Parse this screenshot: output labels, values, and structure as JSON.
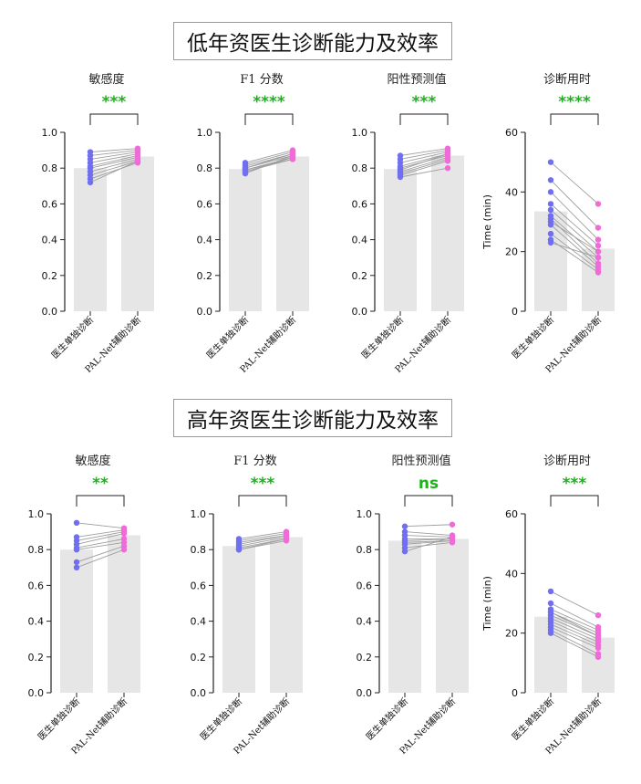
{
  "sections": [
    {
      "title": "低年资医生诊断能力及效率"
    },
    {
      "title": "高年资医生诊断能力及效率"
    }
  ],
  "colors": {
    "bar": "#e6e6e6",
    "before": "#6f6ff0",
    "after": "#f06ad8",
    "sig": "#18b418",
    "line": "#9e9e9e"
  },
  "chart_data": [
    {
      "type": "bar",
      "title": "敏感度",
      "significance": "***",
      "categories": [
        "医生单独诊断",
        "PAL-Net辅助诊断"
      ],
      "ylim": [
        0,
        1
      ],
      "yticks": [
        "0.0",
        "0.2",
        "0.4",
        "0.6",
        "0.8",
        "1.0"
      ],
      "ylabel": "",
      "means": [
        0.8,
        0.865
      ],
      "pairs": [
        [
          0.89,
          0.91
        ],
        [
          0.87,
          0.9
        ],
        [
          0.85,
          0.89
        ],
        [
          0.83,
          0.88
        ],
        [
          0.81,
          0.87
        ],
        [
          0.8,
          0.86
        ],
        [
          0.78,
          0.85
        ],
        [
          0.76,
          0.84
        ],
        [
          0.74,
          0.83
        ],
        [
          0.72,
          0.84
        ]
      ]
    },
    {
      "type": "bar",
      "title": "F1 分数",
      "significance": "****",
      "categories": [
        "医生单独诊断",
        "PAL-Net辅助诊断"
      ],
      "ylim": [
        0,
        1
      ],
      "yticks": [
        "0.0",
        "0.2",
        "0.4",
        "0.6",
        "0.8",
        "1.0"
      ],
      "ylabel": "",
      "means": [
        0.795,
        0.865
      ],
      "pairs": [
        [
          0.83,
          0.9
        ],
        [
          0.82,
          0.89
        ],
        [
          0.81,
          0.88
        ],
        [
          0.8,
          0.87
        ],
        [
          0.79,
          0.86
        ],
        [
          0.79,
          0.85
        ],
        [
          0.78,
          0.86
        ],
        [
          0.78,
          0.85
        ],
        [
          0.77,
          0.87
        ],
        [
          0.8,
          0.88
        ]
      ]
    },
    {
      "type": "bar",
      "title": "阳性预测值",
      "significance": "***",
      "categories": [
        "医生单独诊断",
        "PAL-Net辅助诊断"
      ],
      "ylim": [
        0,
        1
      ],
      "yticks": [
        "0.0",
        "0.2",
        "0.4",
        "0.6",
        "0.8",
        "1.0"
      ],
      "ylabel": "",
      "means": [
        0.795,
        0.87
      ],
      "pairs": [
        [
          0.87,
          0.91
        ],
        [
          0.85,
          0.9
        ],
        [
          0.83,
          0.89
        ],
        [
          0.81,
          0.88
        ],
        [
          0.8,
          0.87
        ],
        [
          0.78,
          0.86
        ],
        [
          0.77,
          0.85
        ],
        [
          0.76,
          0.84
        ],
        [
          0.75,
          0.8
        ],
        [
          0.79,
          0.88
        ]
      ]
    },
    {
      "type": "bar",
      "title": "诊断用时",
      "significance": "****",
      "categories": [
        "医生单独诊断",
        "PAL-Net辅助诊断"
      ],
      "ylim": [
        0,
        60
      ],
      "yticks": [
        "0",
        "20",
        "40",
        "60"
      ],
      "ylabel": "Time (min)",
      "means": [
        33.5,
        21
      ],
      "pairs": [
        [
          50,
          36
        ],
        [
          44,
          28
        ],
        [
          40,
          24
        ],
        [
          36,
          22
        ],
        [
          34,
          20
        ],
        [
          32,
          18
        ],
        [
          31,
          16
        ],
        [
          29,
          15
        ],
        [
          26,
          14
        ],
        [
          24,
          13
        ],
        [
          23,
          18
        ],
        [
          30,
          20
        ]
      ]
    },
    {
      "type": "bar",
      "title": "敏感度",
      "significance": "**",
      "categories": [
        "医生单独诊断",
        "PAL-Net辅助诊断"
      ],
      "ylim": [
        0,
        1
      ],
      "yticks": [
        "0.0",
        "0.2",
        "0.4",
        "0.6",
        "0.8",
        "1.0"
      ],
      "ylabel": "",
      "means": [
        0.8,
        0.88
      ],
      "pairs": [
        [
          0.95,
          0.92
        ],
        [
          0.87,
          0.91
        ],
        [
          0.85,
          0.9
        ],
        [
          0.83,
          0.89
        ],
        [
          0.81,
          0.86
        ],
        [
          0.8,
          0.84
        ],
        [
          0.73,
          0.82
        ],
        [
          0.7,
          0.8
        ]
      ]
    },
    {
      "type": "bar",
      "title": "F1 分数",
      "significance": "***",
      "categories": [
        "医生单独诊断",
        "PAL-Net辅助诊断"
      ],
      "ylim": [
        0,
        1
      ],
      "yticks": [
        "0.0",
        "0.2",
        "0.4",
        "0.6",
        "0.8",
        "1.0"
      ],
      "ylabel": "",
      "means": [
        0.82,
        0.87
      ],
      "pairs": [
        [
          0.86,
          0.9
        ],
        [
          0.85,
          0.89
        ],
        [
          0.84,
          0.88
        ],
        [
          0.83,
          0.88
        ],
        [
          0.82,
          0.87
        ],
        [
          0.81,
          0.86
        ],
        [
          0.8,
          0.85
        ],
        [
          0.8,
          0.86
        ]
      ]
    },
    {
      "type": "bar",
      "title": "阳性预测值",
      "significance": "ns",
      "categories": [
        "医生单独诊断",
        "PAL-Net辅助诊断"
      ],
      "ylim": [
        0,
        1
      ],
      "yticks": [
        "0.0",
        "0.2",
        "0.4",
        "0.6",
        "0.8",
        "1.0"
      ],
      "ylabel": "",
      "means": [
        0.85,
        0.86
      ],
      "pairs": [
        [
          0.93,
          0.94
        ],
        [
          0.9,
          0.88
        ],
        [
          0.88,
          0.87
        ],
        [
          0.86,
          0.86
        ],
        [
          0.85,
          0.86
        ],
        [
          0.84,
          0.85
        ],
        [
          0.83,
          0.85
        ],
        [
          0.81,
          0.84
        ],
        [
          0.79,
          0.87
        ]
      ]
    },
    {
      "type": "bar",
      "title": "诊断用时",
      "significance": "***",
      "categories": [
        "医生单独诊断",
        "PAL-Net辅助诊断"
      ],
      "ylim": [
        0,
        60
      ],
      "yticks": [
        "0",
        "20",
        "40",
        "60"
      ],
      "ylabel": "Time (min)",
      "means": [
        25.5,
        18.5
      ],
      "pairs": [
        [
          34,
          26
        ],
        [
          30,
          22
        ],
        [
          28,
          21
        ],
        [
          27,
          20
        ],
        [
          26,
          19
        ],
        [
          25,
          18
        ],
        [
          24,
          17
        ],
        [
          23,
          16
        ],
        [
          22,
          15
        ],
        [
          21,
          13
        ],
        [
          20,
          12
        ],
        [
          27,
          19
        ]
      ]
    }
  ]
}
